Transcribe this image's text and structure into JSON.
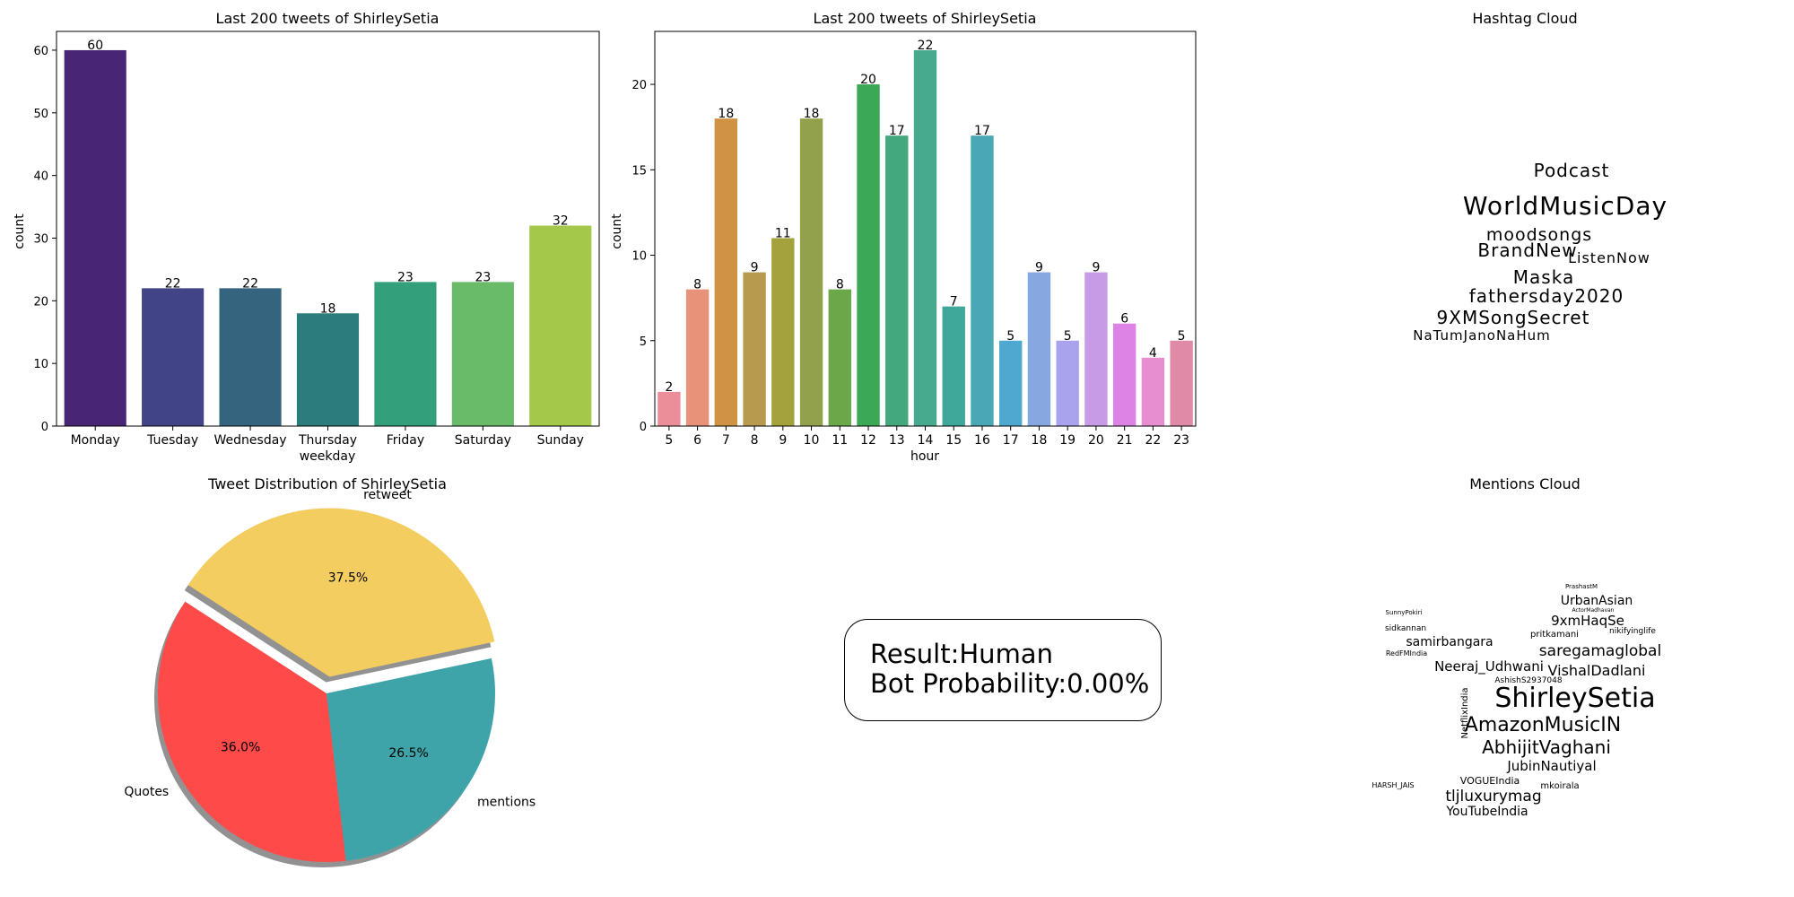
{
  "chart_data": [
    {
      "type": "bar",
      "title": "Last 200 tweets of ShirleySetia",
      "xlabel": "weekday",
      "ylabel": "count",
      "categories": [
        "Monday",
        "Tuesday",
        "Wednesday",
        "Thursday",
        "Friday",
        "Saturday",
        "Sunday"
      ],
      "values": [
        60,
        22,
        22,
        18,
        23,
        23,
        32
      ],
      "colors": [
        "#482575",
        "#414487",
        "#35647f",
        "#2a7d7a",
        "#33a07b",
        "#69bb6a",
        "#a4c84a"
      ],
      "ylim": [
        0,
        63
      ],
      "yticks": [
        0,
        10,
        20,
        30,
        40,
        50,
        60
      ],
      "grid": false
    },
    {
      "type": "bar",
      "title": "Last 200 tweets of ShirleySetia",
      "xlabel": "hour",
      "ylabel": "count",
      "categories": [
        "5",
        "6",
        "7",
        "8",
        "9",
        "10",
        "11",
        "12",
        "13",
        "14",
        "15",
        "16",
        "17",
        "18",
        "19",
        "20",
        "21",
        "22",
        "23"
      ],
      "values": [
        2,
        8,
        18,
        9,
        11,
        18,
        8,
        20,
        17,
        22,
        7,
        17,
        5,
        9,
        5,
        9,
        6,
        4,
        5
      ],
      "colors": [
        "#eb8e99",
        "#e8927a",
        "#cf9343",
        "#b89a4e",
        "#a3a23d",
        "#91a24a",
        "#6aa84a",
        "#3aa855",
        "#43a87b",
        "#47aa8f",
        "#3fa89b",
        "#4aa8b6",
        "#4fa8d0",
        "#87a7e0",
        "#a8a3ec",
        "#c79be6",
        "#dd83e6",
        "#e78ed0",
        "#e18aa8"
      ],
      "ylim": [
        0,
        23.1
      ],
      "yticks": [
        0,
        5,
        10,
        15,
        20
      ],
      "grid": false
    },
    {
      "type": "pie",
      "title": "Tweet Distribution of ShirleySetia",
      "labels": [
        "retweet",
        "Quotes",
        "mentions"
      ],
      "values": [
        37.5,
        36.0,
        26.5
      ],
      "value_labels": [
        "37.5%",
        "36.0%",
        "26.5%"
      ],
      "colors": [
        "#f4cd60",
        "#ff4a4a",
        "#3fa4a9"
      ],
      "exploded": [
        "retweet"
      ],
      "shadow": true
    }
  ],
  "hashtag_cloud": {
    "title": "Hashtag Cloud",
    "words": [
      {
        "text": "Podcast",
        "color": "#4a1a62"
      },
      {
        "text": "WorldMusicDay",
        "color": "#2d7890"
      },
      {
        "text": "moodsongs",
        "color": "#2aa582"
      },
      {
        "text": "BrandNew",
        "color": "#4a1a62"
      },
      {
        "text": "ListenNow",
        "color": "#3dbb7f"
      },
      {
        "text": "Maska",
        "color": "#3dbb7f"
      },
      {
        "text": "fathersday2020",
        "color": "#3dbb7f"
      },
      {
        "text": "9XMSongSecret",
        "color": "#4a1a62"
      },
      {
        "text": "NaTumJanoNaHum",
        "color": "#a8d83c"
      }
    ]
  },
  "mentions_cloud": {
    "title": "Mentions Cloud",
    "words": [
      {
        "text": "PrashastM",
        "color": "#3a6fae"
      },
      {
        "text": "UrbanAsian",
        "color": "#3a5a8c"
      },
      {
        "text": "SunnyPokiri",
        "color": "#a8d83c"
      },
      {
        "text": "ActorMadhavan",
        "color": "#2aa582"
      },
      {
        "text": "9xmHaqSe",
        "color": "#2aa582"
      },
      {
        "text": "sidkannan",
        "color": "#3a5a8c"
      },
      {
        "text": "pritkamani",
        "color": "#6cc55a"
      },
      {
        "text": "nikifyinglife",
        "color": "#3a2a6a"
      },
      {
        "text": "samirbangara",
        "color": "#3a2a6a"
      },
      {
        "text": "saregamaglobal",
        "color": "#c9db3a"
      },
      {
        "text": "RedFMIndia",
        "color": "#2d7890"
      },
      {
        "text": "Neeraj_Udhwani",
        "color": "#2aa582"
      },
      {
        "text": "VishalDadlani",
        "color": "#4a1a62"
      },
      {
        "text": "AshishS2937048",
        "color": "#2aa582"
      },
      {
        "text": "ShirleySetia",
        "color": "#443a83"
      },
      {
        "text": "AmazonMusicIN",
        "color": "#2d7890"
      },
      {
        "text": "NetflixIndia",
        "color": "#2aa582"
      },
      {
        "text": "AbhijitVaghani",
        "color": "#2d7890"
      },
      {
        "text": "JubinNautiyal",
        "color": "#3dbb7f"
      },
      {
        "text": "VOGUEIndia",
        "color": "#3a2a6a"
      },
      {
        "text": "mkoirala",
        "color": "#3a2a6a"
      },
      {
        "text": "tljluxurymag",
        "color": "#3a2a6a"
      },
      {
        "text": "YouTubeIndia",
        "color": "#2aa582"
      },
      {
        "text": "HARSH_JAIS",
        "color": "#a8d83c"
      }
    ]
  },
  "result_box": {
    "line1": "Result:Human",
    "line2": "Bot Probability:0.00%"
  }
}
